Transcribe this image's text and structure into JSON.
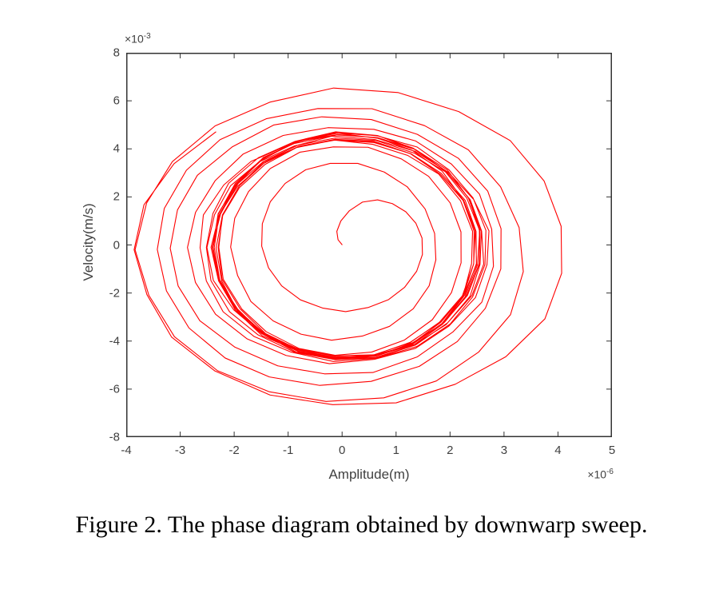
{
  "figure": {
    "caption": "Figure 2. The phase diagram obtained by downwarp sweep."
  },
  "chart_data": {
    "type": "line",
    "subtype": "phase-portrait-spiral",
    "title": "",
    "xlabel": "Amplitude(m)",
    "ylabel": "Velocity(m/s)",
    "x_scale_prefix": "×10",
    "x_scale_exponent": "-6",
    "y_scale_prefix": "×10",
    "y_scale_exponent": "-3",
    "xlim": [
      -4,
      5
    ],
    "ylim": [
      -8,
      8
    ],
    "xticks": [
      -4,
      -3,
      -2,
      -1,
      0,
      1,
      2,
      3,
      4,
      5
    ],
    "yticks": [
      8,
      6,
      4,
      2,
      0,
      -2,
      -4,
      -6,
      -8
    ],
    "grid": false,
    "legend": null,
    "line_color": "#ff0000",
    "axis_color": "#333333",
    "label_color": "#404040",
    "spiral": {
      "points_per_revolution": 21,
      "start_revolution_fraction": 0.75,
      "end_revolution_fraction": 0.92,
      "jitter": 0.012,
      "seed": 9,
      "start_loop": {
        "cx": 0.45,
        "cy": 0.0,
        "rx": 0.45,
        "ry": 0.5
      },
      "loops": [
        {
          "cx": 0.45,
          "cy": -0.05,
          "rx": 1.0,
          "ry": 1.9
        },
        {
          "cx": -0.1,
          "cy": -0.05,
          "rx": 1.7,
          "ry": 3.5
        },
        {
          "cx": 0.0,
          "cy": -0.1,
          "rx": 2.15,
          "ry": 4.25
        },
        {
          "cx": 0.08,
          "cy": -0.1,
          "rx": 2.42,
          "ry": 4.65
        },
        {
          "cx": 0.04,
          "cy": -0.12,
          "rx": 2.35,
          "ry": 4.45
        },
        {
          "cx": 0.1,
          "cy": -0.08,
          "rx": 2.5,
          "ry": 4.7
        },
        {
          "cx": 0.05,
          "cy": -0.12,
          "rx": 2.4,
          "ry": 4.5
        },
        {
          "cx": 0.1,
          "cy": -0.1,
          "rx": 2.48,
          "ry": 4.78
        },
        {
          "cx": 0.06,
          "cy": -0.14,
          "rx": 2.38,
          "ry": 4.55
        },
        {
          "cx": 0.1,
          "cy": -0.08,
          "rx": 2.52,
          "ry": 4.7
        },
        {
          "cx": 0.04,
          "cy": -0.1,
          "rx": 2.44,
          "ry": 4.5
        },
        {
          "cx": 0.1,
          "cy": -0.12,
          "rx": 2.5,
          "ry": 4.75
        },
        {
          "cx": 0.06,
          "cy": -0.1,
          "rx": 2.56,
          "ry": 4.55
        },
        {
          "cx": 0.08,
          "cy": -0.1,
          "rx": 2.62,
          "ry": 4.8
        },
        {
          "cx": 0.0,
          "cy": -0.12,
          "rx": 2.7,
          "ry": 4.62
        },
        {
          "cx": -0.05,
          "cy": -0.1,
          "rx": 2.85,
          "ry": 5.05
        },
        {
          "cx": -0.15,
          "cy": -0.15,
          "rx": 3.1,
          "ry": 5.5
        },
        {
          "cx": -0.2,
          "cy": -0.2,
          "rx": 3.3,
          "ry": 5.95
        },
        {
          "cx": 0.15,
          "cy": -0.2,
          "rx": 4.05,
          "ry": 6.7
        }
      ],
      "end_loop": {
        "cx": 0.1,
        "cy": -0.2,
        "rx": 3.9,
        "ry": 6.3
      }
    }
  }
}
